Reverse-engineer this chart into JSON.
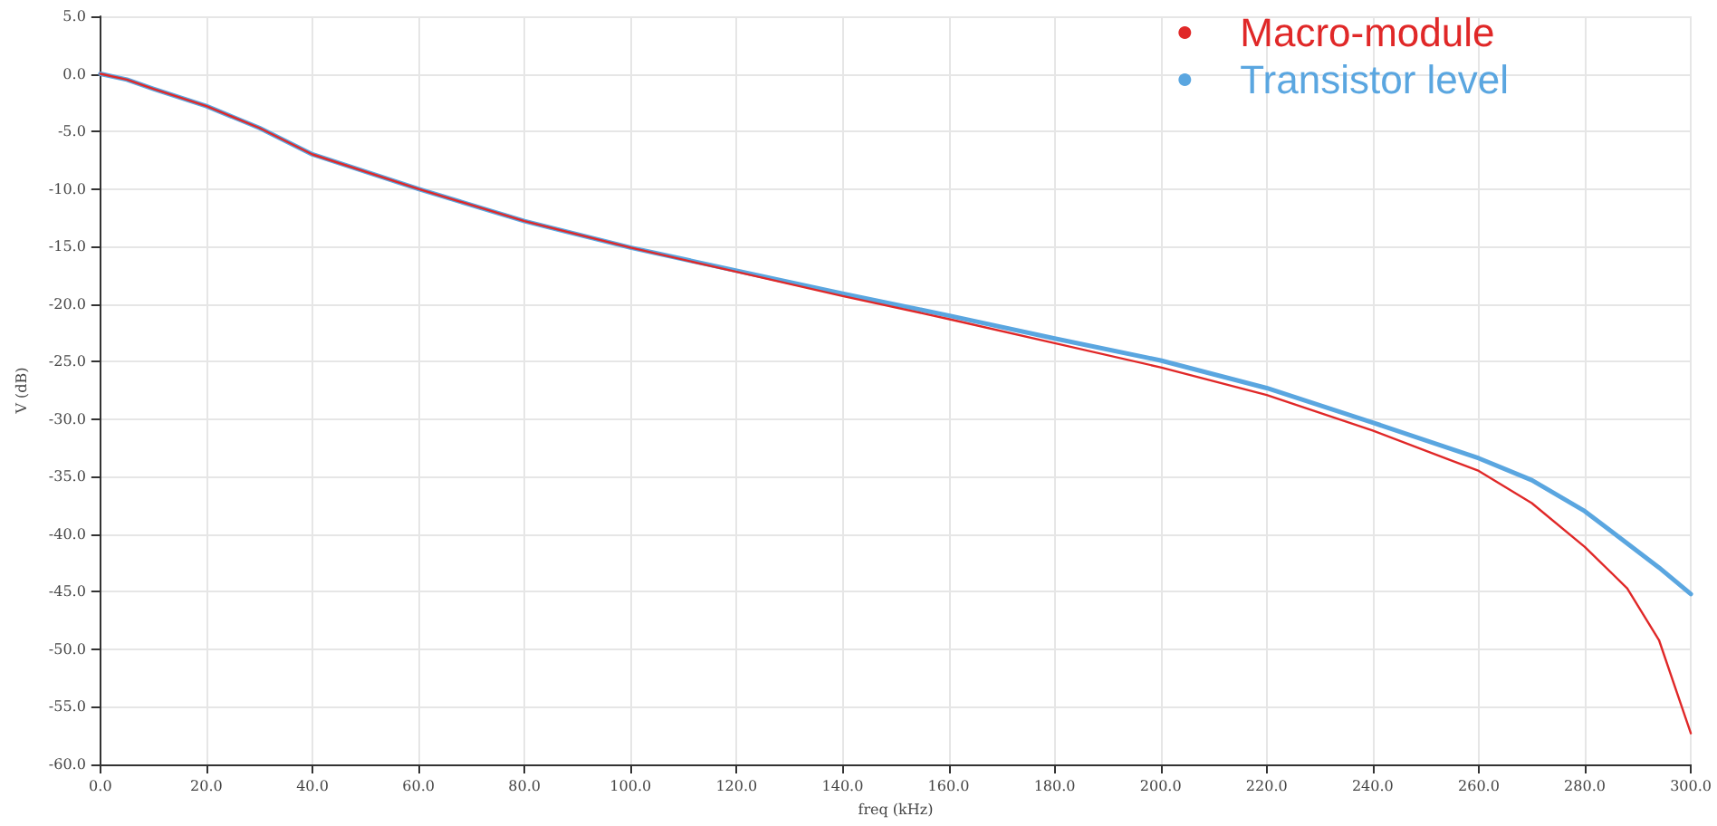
{
  "chart_data": {
    "type": "line",
    "xlabel": "freq (kHz)",
    "ylabel": "V (dB)",
    "xlim": [
      0,
      300
    ],
    "ylim": [
      -60,
      5
    ],
    "xticks": [
      {
        "value": 0,
        "label": "0.0"
      },
      {
        "value": 20,
        "label": "20.0"
      },
      {
        "value": 40,
        "label": "40.0"
      },
      {
        "value": 60,
        "label": "60.0"
      },
      {
        "value": 80,
        "label": "80.0"
      },
      {
        "value": 100,
        "label": "100.0"
      },
      {
        "value": 120,
        "label": "120.0"
      },
      {
        "value": 140,
        "label": "140.0"
      },
      {
        "value": 160,
        "label": "160.0"
      },
      {
        "value": 180,
        "label": "180.0"
      },
      {
        "value": 200,
        "label": "200.0"
      },
      {
        "value": 220,
        "label": "220.0"
      },
      {
        "value": 240,
        "label": "240.0"
      },
      {
        "value": 260,
        "label": "260.0"
      },
      {
        "value": 280,
        "label": "280.0"
      },
      {
        "value": 300,
        "label": "300.0"
      }
    ],
    "yticks": [
      {
        "value": -60,
        "label": "-60.0"
      },
      {
        "value": -55,
        "label": "-55.0"
      },
      {
        "value": -50,
        "label": "-50.0"
      },
      {
        "value": -45,
        "label": "-45.0"
      },
      {
        "value": -40,
        "label": "-40.0"
      },
      {
        "value": -35,
        "label": "-35.0"
      },
      {
        "value": -30,
        "label": "-30.0"
      },
      {
        "value": -25,
        "label": "-25.0"
      },
      {
        "value": -20,
        "label": "-20.0"
      },
      {
        "value": -15,
        "label": "-15.0"
      },
      {
        "value": -10,
        "label": "-10.0"
      },
      {
        "value": -5,
        "label": "-5.0"
      },
      {
        "value": 0,
        "label": "0.0"
      },
      {
        "value": 5,
        "label": "5.0"
      }
    ],
    "grid": true,
    "legend": "top right",
    "marker": "none",
    "line_style": "solid",
    "x": [
      0,
      5,
      10,
      20,
      30,
      40,
      60,
      80,
      100,
      120,
      140,
      160,
      180,
      200,
      220,
      240,
      260,
      270,
      280,
      288,
      294,
      300
    ],
    "series": [
      {
        "name": "Macro-module",
        "color": "#e02828",
        "values": [
          0,
          -0.5,
          -1.3,
          -2.8,
          -4.7,
          -7.0,
          -10.0,
          -12.8,
          -15.1,
          -17.2,
          -19.3,
          -21.3,
          -23.4,
          -25.5,
          -27.9,
          -31.0,
          -34.5,
          -37.3,
          -41.1,
          -44.7,
          -49.2,
          -57.3
        ]
      },
      {
        "name": "Transistor level",
        "color": "#5aa6e0",
        "values": [
          0,
          -0.5,
          -1.3,
          -2.8,
          -4.7,
          -7.0,
          -10.0,
          -12.8,
          -15.1,
          -17.1,
          -19.1,
          -21.0,
          -23.0,
          -24.9,
          -27.3,
          -30.3,
          -33.4,
          -35.3,
          -38.0,
          -40.8,
          -42.9,
          -45.2
        ]
      }
    ]
  }
}
